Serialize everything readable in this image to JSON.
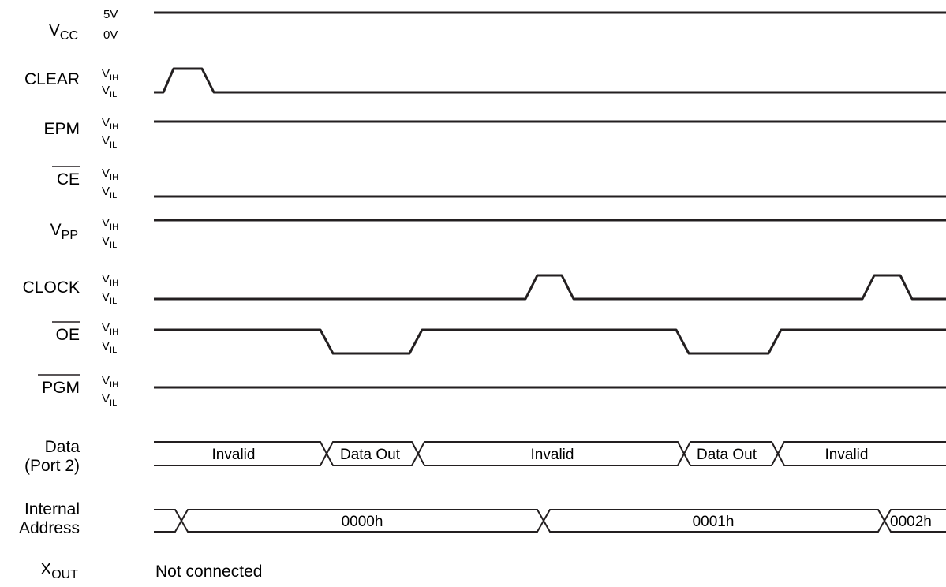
{
  "signals": {
    "vcc": {
      "base": "V",
      "sub": "CC",
      "high": "5V",
      "low": "0V"
    },
    "clear": {
      "label": "CLEAR",
      "high_base": "V",
      "high_sub": "IH",
      "low_base": "V",
      "low_sub": "IL"
    },
    "epm": {
      "label": "EPM",
      "high_base": "V",
      "high_sub": "IH",
      "low_base": "V",
      "low_sub": "IL"
    },
    "ce": {
      "label": "CE",
      "overbar": true,
      "high_base": "V",
      "high_sub": "IH",
      "low_base": "V",
      "low_sub": "IL"
    },
    "vpp": {
      "base": "V",
      "sub": "PP",
      "high_base": "V",
      "high_sub": "IH",
      "low_base": "V",
      "low_sub": "IL"
    },
    "clock": {
      "label": "CLOCK",
      "high_base": "V",
      "high_sub": "IH",
      "low_base": "V",
      "low_sub": "IL"
    },
    "oe": {
      "label": "OE",
      "overbar": true,
      "high_base": "V",
      "high_sub": "IH",
      "low_base": "V",
      "low_sub": "IL"
    },
    "pgm": {
      "label": "PGM",
      "overbar": true,
      "high_base": "V",
      "high_sub": "IH",
      "low_base": "V",
      "low_sub": "IL"
    },
    "data": {
      "line1": "Data",
      "line2": "(Port 2)",
      "segments": [
        "Invalid",
        "Data Out",
        "Invalid",
        "Data Out",
        "Invalid"
      ]
    },
    "address": {
      "line1": "Internal",
      "line2": "Address",
      "segments": [
        "0000h",
        "0001h",
        "0002h"
      ]
    },
    "xout": {
      "base": "X",
      "sub": "OUT",
      "status": "Not connected"
    }
  }
}
